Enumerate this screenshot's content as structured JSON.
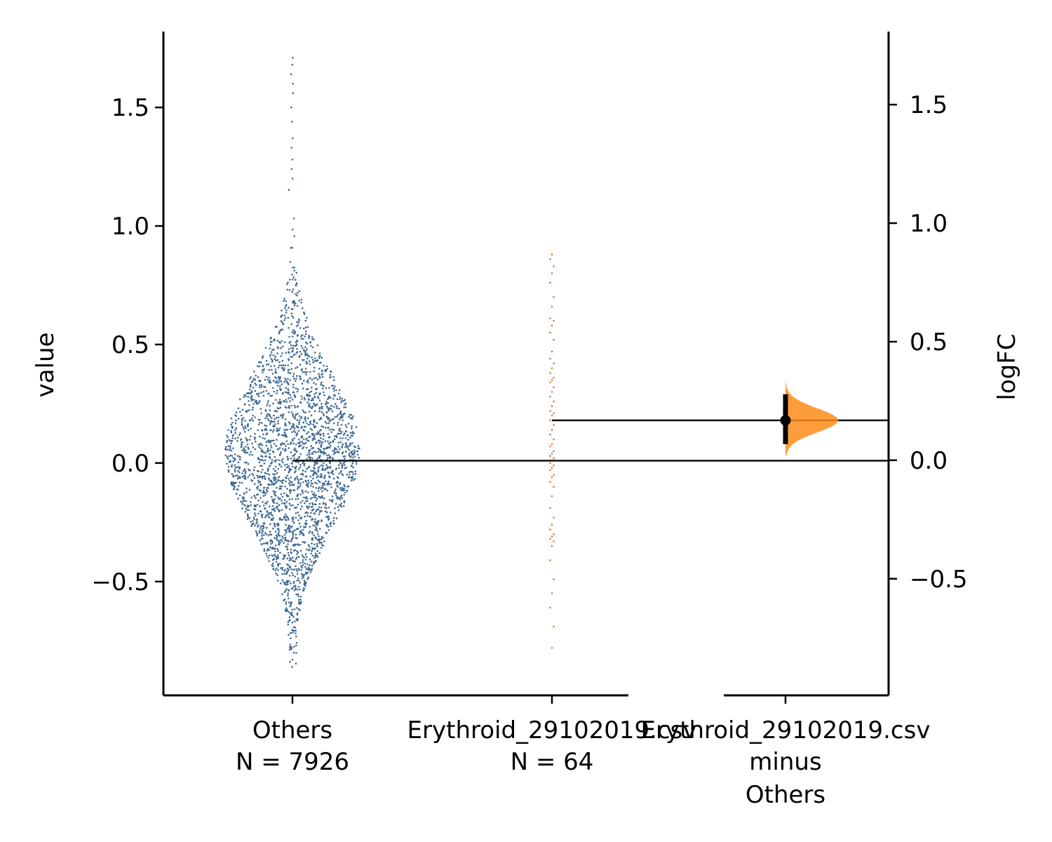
{
  "chart_data": {
    "type": "scatter",
    "subtype": "estimation-plot (swarm + bootstrap delta)",
    "left_axis": {
      "ylabel": "value",
      "ylim": [
        -0.98,
        1.82
      ],
      "yticks": [
        -0.5,
        0.0,
        0.5,
        1.0,
        1.5
      ],
      "ytick_labels": [
        "−0.5",
        "0.0",
        "0.5",
        "1.0",
        "1.5"
      ]
    },
    "right_axis": {
      "ylabel": "logFC",
      "ylim": [
        -0.98,
        1.82
      ],
      "yticks": [
        -0.5,
        0.0,
        0.5,
        1.0,
        1.5
      ],
      "ytick_labels": [
        "−0.5",
        "0.0",
        "0.5",
        "1.0",
        "1.5"
      ]
    },
    "groups": [
      {
        "name": "Others",
        "n_label": "N = 7926",
        "n": 7926,
        "color": "#4c72b0",
        "point_color": "#3f6a93",
        "mean": 0.01,
        "range": [
          -0.86,
          1.71
        ],
        "sd": 0.3
      },
      {
        "name": "Erythroid_29102019.csv",
        "n_label": "N = 64",
        "n": 64,
        "color": "#dd8452",
        "point_color": "#d07a3c",
        "mean": 0.18,
        "range": [
          -0.78,
          0.88
        ],
        "sd": 0.3
      }
    ],
    "delta": {
      "label_lines": [
        "Erythroid_29102019.csv",
        "minus",
        "Others"
      ],
      "estimate": 0.18,
      "ci": [
        0.08,
        0.29
      ],
      "dist_range": [
        0.03,
        0.36
      ],
      "color": "#ff8c1a",
      "marker_color": "#000000"
    },
    "reference_lines": [
      {
        "from": "Others",
        "value": 0.01
      },
      {
        "from": "Erythroid_29102019.csv",
        "value": 0.18
      }
    ],
    "grid": false,
    "legend": "none"
  }
}
